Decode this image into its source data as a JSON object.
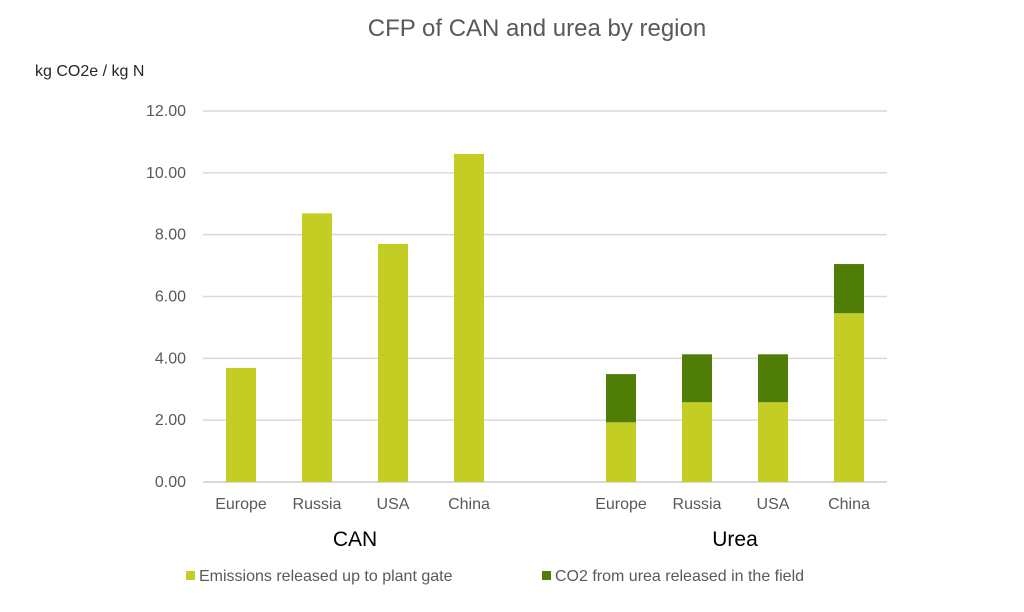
{
  "chart_data": {
    "type": "bar",
    "stacked": true,
    "title": "CFP of CAN and urea by region",
    "ylabel": "kg CO2e / kg N",
    "xlabel": "",
    "ylim": [
      0,
      12
    ],
    "yticks": [
      "0.00",
      "2.00",
      "4.00",
      "6.00",
      "8.00",
      "10.00",
      "12.00"
    ],
    "grid": true,
    "legend_position": "bottom",
    "groups": [
      {
        "label": "CAN",
        "categories": [
          "Europe",
          "Russia",
          "USA",
          "China"
        ]
      },
      {
        "label": "Urea",
        "categories": [
          "Europe",
          "Russia",
          "USA",
          "China"
        ]
      }
    ],
    "series": [
      {
        "name": "Emissions released up to plant gate",
        "color": "#c3cd23",
        "values": [
          [
            3.69,
            8.69,
            7.7,
            10.61
          ],
          [
            1.93,
            2.58,
            2.58,
            5.46
          ]
        ]
      },
      {
        "name": "CO2 from urea released in the field",
        "color": "#507d05",
        "values": [
          [
            0,
            0,
            0,
            0
          ],
          [
            1.56,
            1.55,
            1.55,
            1.59
          ]
        ]
      }
    ]
  }
}
